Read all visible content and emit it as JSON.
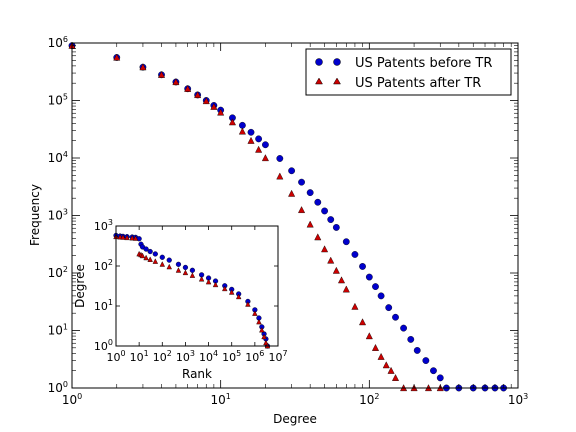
{
  "chart_data": [
    {
      "type": "scatter",
      "role": "main",
      "xlabel": "Degree",
      "ylabel": "Frequency",
      "x_scale": "log",
      "y_scale": "log",
      "xlim": [
        1,
        1000
      ],
      "ylim": [
        1,
        1000000
      ],
      "x_ticks": [
        {
          "value": 1,
          "base": "10",
          "exp": "0"
        },
        {
          "value": 10,
          "base": "10",
          "exp": "1"
        },
        {
          "value": 100,
          "base": "10",
          "exp": "2"
        },
        {
          "value": 1000,
          "base": "10",
          "exp": "3"
        }
      ],
      "y_ticks": [
        {
          "value": 1,
          "base": "10",
          "exp": "0"
        },
        {
          "value": 10,
          "base": "10",
          "exp": "1"
        },
        {
          "value": 100,
          "base": "10",
          "exp": "2"
        },
        {
          "value": 1000,
          "base": "10",
          "exp": "3"
        },
        {
          "value": 10000,
          "base": "10",
          "exp": "4"
        },
        {
          "value": 100000,
          "base": "10",
          "exp": "5"
        },
        {
          "value": 1000000,
          "base": "10",
          "exp": "6"
        }
      ],
      "grid": false,
      "legend_position": "top-right",
      "series": [
        {
          "name": "US Patents before TR",
          "marker": "circle",
          "color": "#0000cc",
          "points": [
            [
              1,
              900000
            ],
            [
              2,
              560000
            ],
            [
              3,
              380000
            ],
            [
              4,
              280000
            ],
            [
              5,
              210000
            ],
            [
              6,
              160000
            ],
            [
              7,
              125000
            ],
            [
              8,
              100000
            ],
            [
              9,
              82000
            ],
            [
              10,
              68000
            ],
            [
              12,
              50000
            ],
            [
              14,
              37000
            ],
            [
              16,
              28000
            ],
            [
              18,
              21500
            ],
            [
              20,
              17000
            ],
            [
              25,
              9800
            ],
            [
              30,
              6000
            ],
            [
              35,
              3800
            ],
            [
              40,
              2500
            ],
            [
              45,
              1700
            ],
            [
              50,
              1200
            ],
            [
              55,
              850
            ],
            [
              60,
              620
            ],
            [
              70,
              350
            ],
            [
              80,
              210
            ],
            [
              90,
              130
            ],
            [
              100,
              85
            ],
            [
              110,
              58
            ],
            [
              120,
              40
            ],
            [
              135,
              25
            ],
            [
              150,
              17
            ],
            [
              170,
              11
            ],
            [
              190,
              7
            ],
            [
              210,
              4.5
            ],
            [
              240,
              3
            ],
            [
              270,
              2
            ],
            [
              300,
              1.5
            ],
            [
              330,
              1
            ],
            [
              400,
              1
            ],
            [
              500,
              1
            ],
            [
              600,
              1
            ],
            [
              700,
              1
            ],
            [
              800,
              1
            ]
          ]
        },
        {
          "name": "US Patents after TR",
          "marker": "triangle",
          "color": "#cc0000",
          "points": [
            [
              1,
              900000
            ],
            [
              2,
              560000
            ],
            [
              3,
              380000
            ],
            [
              4,
              280000
            ],
            [
              5,
              210000
            ],
            [
              6,
              160000
            ],
            [
              7,
              125000
            ],
            [
              8,
              98000
            ],
            [
              9,
              78000
            ],
            [
              10,
              62000
            ],
            [
              12,
              42000
            ],
            [
              14,
              29000
            ],
            [
              16,
              20000
            ],
            [
              18,
              14000
            ],
            [
              20,
              10000
            ],
            [
              25,
              4800
            ],
            [
              30,
              2400
            ],
            [
              35,
              1250
            ],
            [
              40,
              700
            ],
            [
              45,
              420
            ],
            [
              50,
              260
            ],
            [
              55,
              165
            ],
            [
              60,
              110
            ],
            [
              65,
              75
            ],
            [
              70,
              52
            ],
            [
              80,
              26
            ],
            [
              90,
              14
            ],
            [
              100,
              8
            ],
            [
              110,
              5
            ],
            [
              120,
              3.5
            ],
            [
              130,
              2.5
            ],
            [
              140,
              2
            ],
            [
              150,
              1.5
            ],
            [
              170,
              1
            ],
            [
              200,
              1
            ],
            [
              250,
              1
            ],
            [
              300,
              1
            ]
          ]
        }
      ]
    },
    {
      "type": "scatter",
      "role": "inset",
      "xlabel": "Rank",
      "ylabel": "Degree",
      "x_scale": "log",
      "y_scale": "log",
      "xlim": [
        1,
        10000000
      ],
      "ylim": [
        1,
        1000
      ],
      "x_ticks": [
        {
          "value": 1,
          "base": "10",
          "exp": "0"
        },
        {
          "value": 10,
          "base": "10",
          "exp": "1"
        },
        {
          "value": 100,
          "base": "10",
          "exp": "2"
        },
        {
          "value": 1000,
          "base": "10",
          "exp": "3"
        },
        {
          "value": 10000,
          "base": "10",
          "exp": "4"
        },
        {
          "value": 100000,
          "base": "10",
          "exp": "5"
        },
        {
          "value": 1000000,
          "base": "10",
          "exp": "6"
        },
        {
          "value": 10000000,
          "base": "10",
          "exp": "7"
        }
      ],
      "y_ticks": [
        {
          "value": 1,
          "base": "10",
          "exp": "0"
        },
        {
          "value": 10,
          "base": "10",
          "exp": "1"
        },
        {
          "value": 100,
          "base": "10",
          "exp": "2"
        },
        {
          "value": 1000,
          "base": "10",
          "exp": "3"
        }
      ],
      "grid": false,
      "series": [
        {
          "name": "US Patents before TR",
          "marker": "circle",
          "color": "#0000cc",
          "points": [
            [
              1,
              580
            ],
            [
              1.5,
              560
            ],
            [
              2,
              550
            ],
            [
              3,
              540
            ],
            [
              5,
              530
            ],
            [
              7,
              520
            ],
            [
              10,
              480
            ],
            [
              12,
              350
            ],
            [
              14,
              300
            ],
            [
              20,
              265
            ],
            [
              30,
              230
            ],
            [
              50,
              200
            ],
            [
              100,
              165
            ],
            [
              200,
              140
            ],
            [
              500,
              110
            ],
            [
              1000,
              92
            ],
            [
              2000,
              78
            ],
            [
              5000,
              60
            ],
            [
              10000,
              50
            ],
            [
              20000,
              42
            ],
            [
              50000,
              32
            ],
            [
              100000,
              26
            ],
            [
              200000,
              20
            ],
            [
              500000,
              13
            ],
            [
              1000000,
              8
            ],
            [
              1500000,
              5
            ],
            [
              2000000,
              3
            ],
            [
              2500000,
              2
            ],
            [
              3000000,
              1.5
            ],
            [
              3500000,
              1
            ]
          ]
        },
        {
          "name": "US Patents after TR",
          "marker": "triangle",
          "color": "#cc0000",
          "points": [
            [
              1,
              540
            ],
            [
              1.5,
              530
            ],
            [
              2,
              520
            ],
            [
              3,
              510
            ],
            [
              5,
              500
            ],
            [
              7,
              490
            ],
            [
              10,
              200
            ],
            [
              12,
              190
            ],
            [
              14,
              180
            ],
            [
              20,
              160
            ],
            [
              30,
              145
            ],
            [
              50,
              130
            ],
            [
              100,
              110
            ],
            [
              200,
              95
            ],
            [
              500,
              78
            ],
            [
              1000,
              68
            ],
            [
              2000,
              58
            ],
            [
              5000,
              47
            ],
            [
              10000,
              40
            ],
            [
              20000,
              34
            ],
            [
              50000,
              27
            ],
            [
              100000,
              22
            ],
            [
              200000,
              17
            ],
            [
              500000,
              11
            ],
            [
              1000000,
              6.5
            ],
            [
              1500000,
              4
            ],
            [
              2000000,
              2.5
            ],
            [
              2500000,
              1.7
            ],
            [
              3000000,
              1.2
            ],
            [
              3500000,
              1
            ]
          ]
        }
      ]
    }
  ]
}
